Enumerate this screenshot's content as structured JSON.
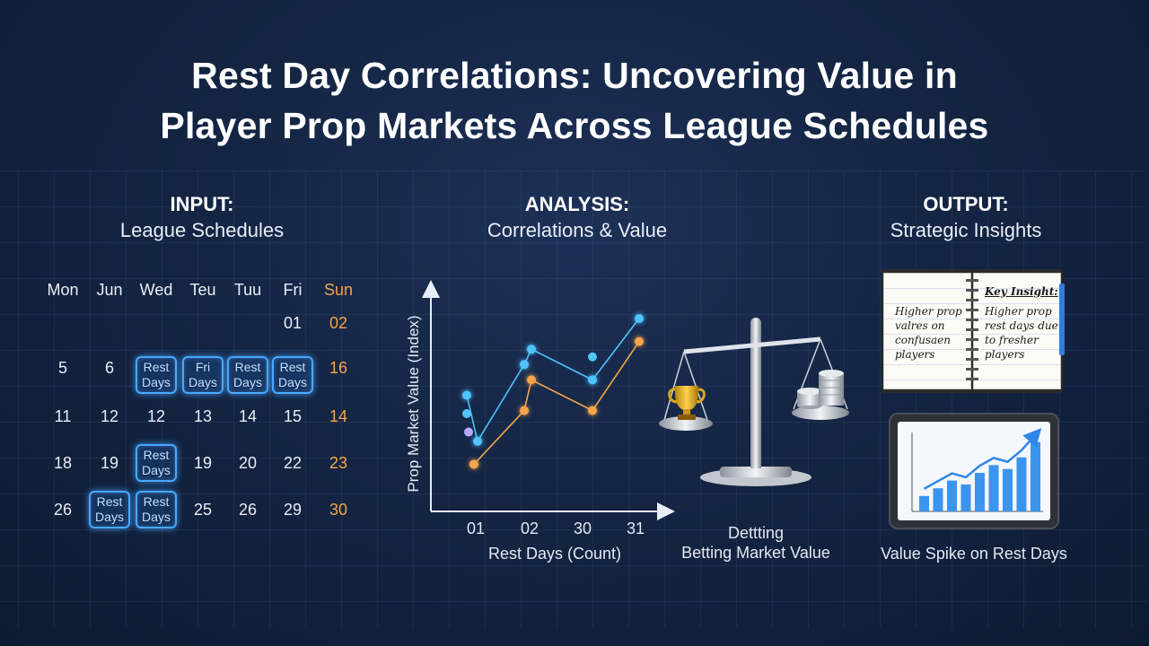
{
  "title": {
    "line1": "Rest Day Correlations: Uncovering Value in",
    "line2": "Player Prop Markets Across League Schedules"
  },
  "sections": {
    "input": {
      "label": "INPUT:",
      "subtitle": "League Schedules"
    },
    "analysis": {
      "label": "ANALYSIS:",
      "subtitle": "Correlations & Value"
    },
    "output": {
      "label": "OUTPUT:",
      "subtitle": "Strategic Insights"
    }
  },
  "calendar": {
    "headers": [
      "Mon",
      "Jun",
      "Wed",
      "Teu",
      "Tuu",
      "Fri",
      "Sun"
    ],
    "rest_label": [
      "Rest",
      "Days"
    ],
    "fri_rest_label": [
      "Fri",
      "Days"
    ],
    "rows": [
      [
        "",
        "",
        "",
        "",
        "",
        "01",
        "02"
      ],
      [
        "5",
        "6",
        "REST",
        "FRI",
        "REST",
        "REST",
        "16"
      ],
      [
        "11",
        "12",
        "12",
        "13",
        "14",
        "15",
        "14"
      ],
      [
        "18",
        "19",
        "REST",
        "19",
        "20",
        "22",
        "23"
      ],
      [
        "26",
        "REST",
        "REST",
        "25",
        "26",
        "29",
        "30"
      ]
    ]
  },
  "chart_data": {
    "type": "line",
    "ylabel": "Prop Market Value (Index)",
    "xlabel": "Rest Days (Count)",
    "tick_labels": [
      "01",
      "02",
      "30",
      "31"
    ],
    "series": [
      {
        "color": "#4fc3ff",
        "points": [
          [
            0,
            5
          ],
          [
            0.3,
            2
          ],
          [
            1.6,
            7
          ],
          [
            1.8,
            8
          ],
          [
            3.5,
            6
          ],
          [
            4.8,
            10
          ]
        ]
      },
      {
        "color": "#f5a54a",
        "points": [
          [
            0.2,
            0.5
          ],
          [
            1.6,
            4
          ],
          [
            1.8,
            6
          ],
          [
            3.5,
            4
          ],
          [
            4.8,
            8.5
          ]
        ]
      }
    ],
    "extra_points": [
      {
        "color": "#4fc3ff",
        "point": [
          0,
          3.8
        ]
      },
      {
        "color": "#4fc3ff",
        "point": [
          3.5,
          7.5
        ]
      },
      {
        "color": "#b7a8ff",
        "point": [
          0.05,
          2.6
        ]
      }
    ]
  },
  "scale": {
    "caption_top": "Dettting",
    "caption_bottom": "Betting Market Value"
  },
  "notebook": {
    "left_lines": [
      "Higher prop",
      "valres on",
      "confusaen",
      "players"
    ],
    "key_label": "Key Insight:",
    "right_lines": [
      "Higher prop",
      "rest days due",
      "to fresher",
      "players"
    ]
  },
  "tablet_chart": {
    "values": [
      2,
      3,
      4,
      3.5,
      5,
      6,
      5.5,
      7,
      9
    ]
  },
  "output_caption": "Value Spike on Rest Days",
  "colors": {
    "accent_blue": "#48a8ff",
    "accent_orange": "#f3a649",
    "background": "#142543"
  }
}
